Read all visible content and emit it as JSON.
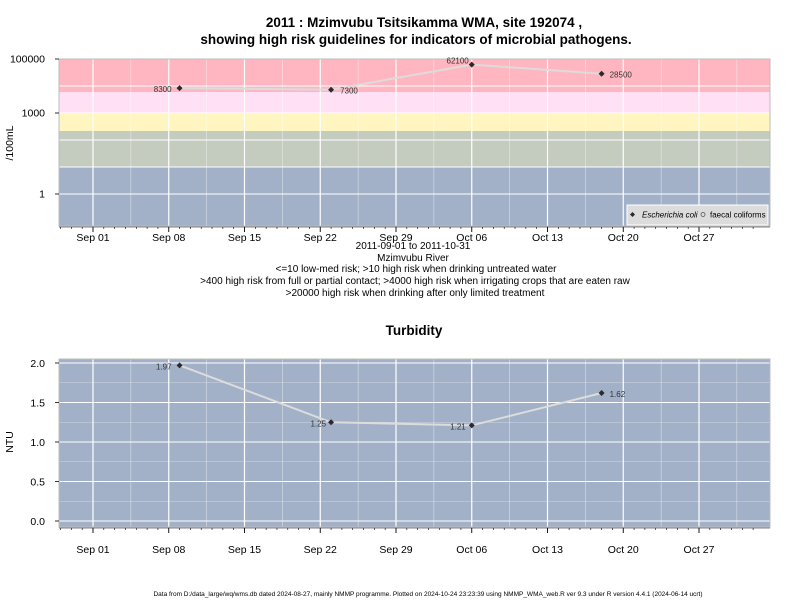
{
  "title_line1": "2011 : Mzimvubu Tsitsikamma WMA, site 192074 ,",
  "title_line2": "showing high risk guidelines for indicators of microbial pathogens.",
  "top_chart": {
    "ylabel": "/100mL",
    "yticks": [
      "100000",
      "1000",
      "1"
    ],
    "xticks": [
      "Sep 01",
      "Sep 08",
      "Sep 15",
      "Sep 22",
      "Sep 29",
      "Oct 06",
      "Oct 13",
      "Oct 20",
      "Oct 27"
    ],
    "captions": [
      "2011-09-01 to 2011-10-31",
      "Mzimvubu River",
      "<=10 low-med risk; >10 high risk when drinking untreated water",
      ">400 high risk from full or partial contact; >4000 high risk when irrigating crops that are eaten raw",
      ">20000 high risk when drinking after only limited treatment"
    ],
    "legend": {
      "ecoli": "Escherichia coli",
      "faecal": "faecal coliforms"
    },
    "point_labels": [
      "8300",
      "7300",
      "62100",
      "28500"
    ]
  },
  "bottom_chart": {
    "title": "Turbidity",
    "ylabel": "NTU",
    "yticks": [
      "2.0",
      "1.5",
      "1.0",
      "0.5",
      "0.0"
    ],
    "xticks": [
      "Sep 01",
      "Sep 08",
      "Sep 15",
      "Sep 22",
      "Sep 29",
      "Oct 06",
      "Oct 13",
      "Oct 20",
      "Oct 27"
    ],
    "point_labels": [
      "1.97",
      "1.25",
      "1.21",
      "1.62"
    ]
  },
  "footer": "Data from D:/data_large/wq/wms.db dated 2024-08-27, mainly NMMP programme. Plotted on 2024-10-24 23:23:39 using NMMP_WMA_web.R ver 9.3 under R version 4.4.1 (2024-06-14 ucrt)",
  "colors": {
    "band_red": "#ffb6c1",
    "band_pink": "#ffe0f4",
    "band_yellow": "#fff5c0",
    "band_green": "#c4cbbf",
    "band_blue": "#a2b1c8",
    "line": "#d9d9d9",
    "point": "#2a2a2a"
  },
  "chart_data": [
    {
      "type": "line",
      "scale": "log",
      "x": [
        "2011-09-09",
        "2011-09-23",
        "2011-10-06",
        "2011-10-18"
      ],
      "series": [
        {
          "name": "Escherichia coli",
          "values": [
            8300,
            7300,
            62100,
            28500
          ]
        }
      ],
      "ylim": [
        0.1,
        100000
      ],
      "thresholds": [
        10,
        400,
        4000,
        20000
      ],
      "grid": true,
      "legend_position": "bottom-right"
    },
    {
      "type": "line",
      "x": [
        "2011-09-09",
        "2011-09-23",
        "2011-10-06",
        "2011-10-18"
      ],
      "series": [
        {
          "values": [
            1.97,
            1.25,
            1.21,
            1.62
          ]
        }
      ],
      "ylim": [
        0,
        2
      ],
      "grid": true
    }
  ]
}
